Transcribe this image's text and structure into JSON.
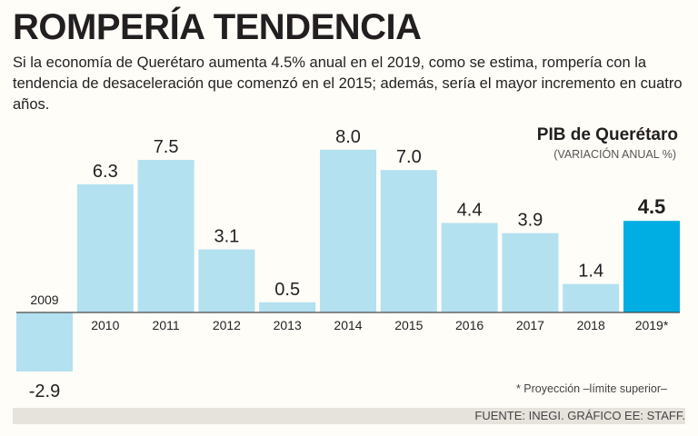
{
  "header": {
    "title": "ROMPERÍA TENDENCIA",
    "subtitle": "Si la economía de Querétaro aumenta 4.5% anual en el 2019, como se estima, rompería con la tendencia de desaceleración que comenzó en el 2015; además, sería el mayor incremento en cuatro años."
  },
  "colors": {
    "bar": "#b3e1f0",
    "highlight": "#00aee3",
    "text": "#231f20"
  },
  "chart_data": {
    "type": "bar",
    "title": "PIB de Querétaro",
    "subtitle": "(VARIACIÓN ANUAL %)",
    "categories": [
      "2009",
      "2010",
      "2011",
      "2012",
      "2013",
      "2014",
      "2015",
      "2016",
      "2017",
      "2018",
      "2019*"
    ],
    "values": [
      -2.9,
      6.3,
      7.5,
      3.1,
      0.5,
      8.0,
      7.0,
      4.4,
      3.9,
      1.4,
      4.5
    ],
    "value_labels": [
      "-2.9",
      "6.3",
      "7.5",
      "3.1",
      "0.5",
      "8.0",
      "7.0",
      "4.4",
      "3.9",
      "1.4",
      "4.5"
    ],
    "highlight_index": 10,
    "ylim": [
      -3,
      8
    ],
    "xlabel": "",
    "ylabel": "",
    "grid": false
  },
  "footer": {
    "note": "* Proyección –límite superior–",
    "source": "FUENTE: INEGI. GRÁFICO EE: STAFF."
  }
}
